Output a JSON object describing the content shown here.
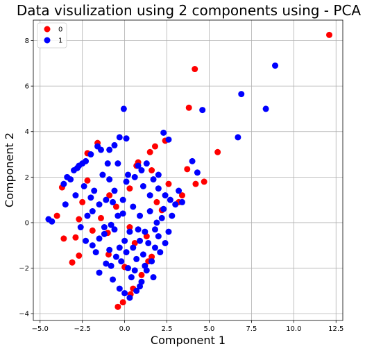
{
  "chart_data": {
    "type": "scatter",
    "title": "Data visulization using 2 components using - PCA",
    "xlabel": "Component 1",
    "ylabel": "Component 2",
    "xlim": [
      -5.4,
      12.9
    ],
    "ylim": [
      -4.3,
      8.9
    ],
    "xticks": [
      -5.0,
      -2.5,
      0.0,
      2.5,
      5.0,
      7.5,
      10.0,
      12.5
    ],
    "xtick_labels": [
      "−5.0",
      "−2.5",
      "0.0",
      "2.5",
      "5.0",
      "7.5",
      "10.0",
      "12.5"
    ],
    "yticks": [
      -4,
      -2,
      0,
      2,
      4,
      6,
      8
    ],
    "ytick_labels": [
      "−4",
      "−2",
      "0",
      "2",
      "4",
      "6",
      "8"
    ],
    "grid": true,
    "legend": {
      "placement": "top-left",
      "entries": [
        "0",
        "1"
      ]
    },
    "series": [
      {
        "name": "0",
        "color": "#ff0000",
        "points": [
          [
            12.1,
            8.25
          ],
          [
            4.15,
            6.75
          ],
          [
            3.8,
            5.05
          ],
          [
            5.5,
            3.1
          ],
          [
            1.8,
            3.35
          ],
          [
            1.5,
            3.1
          ],
          [
            2.4,
            3.6
          ],
          [
            0.8,
            2.65
          ],
          [
            0.7,
            2.5
          ],
          [
            3.7,
            2.35
          ],
          [
            4.7,
            1.8
          ],
          [
            4.2,
            1.7
          ],
          [
            3.4,
            1.2
          ],
          [
            3.2,
            0.9
          ],
          [
            2.2,
            0.55
          ],
          [
            1.6,
            2.3
          ],
          [
            -2.2,
            3.05
          ],
          [
            -1.6,
            3.5
          ],
          [
            -3.7,
            1.55
          ],
          [
            -2.2,
            1.85
          ],
          [
            -2.5,
            0.9
          ],
          [
            -4.0,
            0.3
          ],
          [
            -2.7,
            0.15
          ],
          [
            -2.9,
            -0.65
          ],
          [
            -3.6,
            -0.7
          ],
          [
            -3.1,
            -1.75
          ],
          [
            -2.7,
            -1.45
          ],
          [
            -1.0,
            -0.45
          ],
          [
            -0.95,
            -1.4
          ],
          [
            -1.9,
            -0.35
          ],
          [
            0.3,
            -0.2
          ],
          [
            0.6,
            -0.9
          ],
          [
            1.3,
            -0.6
          ],
          [
            1.6,
            -1.5
          ],
          [
            1.4,
            -1.7
          ],
          [
            0.5,
            -2.9
          ],
          [
            -0.4,
            -3.7
          ],
          [
            -0.1,
            -3.5
          ],
          [
            0.35,
            -3.15
          ],
          [
            1.0,
            -2.3
          ],
          [
            0.3,
            1.5
          ],
          [
            -0.5,
            0.7
          ],
          [
            2.6,
            1.7
          ],
          [
            1.9,
            0.9
          ],
          [
            -1.4,
            0.2
          ],
          [
            0.0,
            -1.95
          ],
          [
            -0.9,
            1.2
          ]
        ]
      },
      {
        "name": "1",
        "color": "#0000ff",
        "points": [
          [
            8.9,
            6.9
          ],
          [
            6.9,
            5.65
          ],
          [
            8.35,
            5.0
          ],
          [
            4.6,
            4.95
          ],
          [
            6.7,
            3.75
          ],
          [
            2.3,
            3.95
          ],
          [
            2.6,
            3.65
          ],
          [
            4.0,
            2.7
          ],
          [
            -0.05,
            5.0
          ],
          [
            -0.3,
            3.75
          ],
          [
            0.1,
            3.7
          ],
          [
            -0.6,
            3.4
          ],
          [
            -0.9,
            3.2
          ],
          [
            -1.4,
            3.2
          ],
          [
            -1.6,
            3.35
          ],
          [
            -2.0,
            3.0
          ],
          [
            -2.5,
            2.6
          ],
          [
            -2.7,
            2.5
          ],
          [
            -3.0,
            2.3
          ],
          [
            -3.4,
            2.0
          ],
          [
            -3.6,
            1.7
          ],
          [
            -3.2,
            1.9
          ],
          [
            -2.8,
            2.4
          ],
          [
            -2.3,
            2.7
          ],
          [
            -1.3,
            2.1
          ],
          [
            -0.9,
            1.9
          ],
          [
            -0.6,
            1.4
          ],
          [
            -1.1,
            1.0
          ],
          [
            -1.5,
            0.8
          ],
          [
            -1.9,
            0.5
          ],
          [
            -2.2,
            0.3
          ],
          [
            -2.6,
            -0.2
          ],
          [
            -2.3,
            -0.8
          ],
          [
            -1.9,
            -1.0
          ],
          [
            -1.5,
            -0.7
          ],
          [
            -1.2,
            -0.2
          ],
          [
            -0.8,
            -0.1
          ],
          [
            -0.4,
            0.3
          ],
          [
            -0.1,
            1.0
          ],
          [
            0.1,
            1.8
          ],
          [
            0.2,
            2.1
          ],
          [
            0.6,
            2.0
          ],
          [
            1.0,
            2.3
          ],
          [
            1.3,
            2.6
          ],
          [
            1.7,
            1.9
          ],
          [
            2.0,
            1.5
          ],
          [
            2.4,
            1.2
          ],
          [
            2.7,
            1.0
          ],
          [
            3.0,
            0.8
          ],
          [
            3.4,
            0.9
          ],
          [
            2.2,
            0.2
          ],
          [
            1.8,
            -0.3
          ],
          [
            1.2,
            -0.4
          ],
          [
            0.9,
            -0.8
          ],
          [
            0.5,
            -1.1
          ],
          [
            0.1,
            -1.3
          ],
          [
            -0.2,
            -1.7
          ],
          [
            -0.5,
            -1.5
          ],
          [
            -0.9,
            -1.2
          ],
          [
            -1.1,
            -1.8
          ],
          [
            -1.5,
            -2.2
          ],
          [
            -0.7,
            -2.5
          ],
          [
            -0.3,
            -2.9
          ],
          [
            0.0,
            -3.1
          ],
          [
            0.3,
            -3.3
          ],
          [
            0.7,
            -3.0
          ],
          [
            1.0,
            -2.6
          ],
          [
            1.3,
            -2.1
          ],
          [
            1.6,
            -1.7
          ],
          [
            2.1,
            -1.3
          ],
          [
            2.4,
            -0.9
          ],
          [
            2.6,
            -0.4
          ],
          [
            2.3,
            0.6
          ],
          [
            1.5,
            0.5
          ],
          [
            0.9,
            0.3
          ],
          [
            0.5,
            0.7
          ],
          [
            0.3,
            -0.4
          ],
          [
            0.7,
            -1.6
          ],
          [
            1.1,
            -1.4
          ],
          [
            1.8,
            -1.1
          ],
          [
            2.0,
            -0.6
          ],
          [
            1.4,
            -0.9
          ],
          [
            0.6,
            -2.1
          ],
          [
            0.4,
            -2.4
          ],
          [
            -4.5,
            0.15
          ],
          [
            -4.3,
            0.05
          ],
          [
            -3.5,
            0.8
          ],
          [
            -2.9,
            1.2
          ],
          [
            -1.8,
            1.4
          ],
          [
            -0.4,
            2.6
          ],
          [
            0.8,
            2.5
          ],
          [
            2.0,
            2.1
          ],
          [
            1.1,
            1.6
          ],
          [
            -0.7,
            0.9
          ],
          [
            0.0,
            -0.8
          ],
          [
            -0.3,
            -1.1
          ],
          [
            1.7,
            -2.4
          ],
          [
            0.9,
            -2.8
          ],
          [
            -0.8,
            -1.9
          ],
          [
            -1.7,
            -1.3
          ],
          [
            -1.2,
            -0.5
          ],
          [
            -0.1,
            0.4
          ],
          [
            1.9,
            0.0
          ],
          [
            2.8,
            0.3
          ],
          [
            3.2,
            1.4
          ],
          [
            4.3,
            2.2
          ],
          [
            1.5,
            1.2
          ],
          [
            -0.6,
            -0.3
          ],
          [
            0.2,
            -2.0
          ],
          [
            1.2,
            -1.9
          ],
          [
            0.8,
            -0.3
          ],
          [
            -2.0,
            1.1
          ],
          [
            -2.4,
            1.6
          ],
          [
            -1.0,
            2.6
          ]
        ]
      }
    ]
  }
}
